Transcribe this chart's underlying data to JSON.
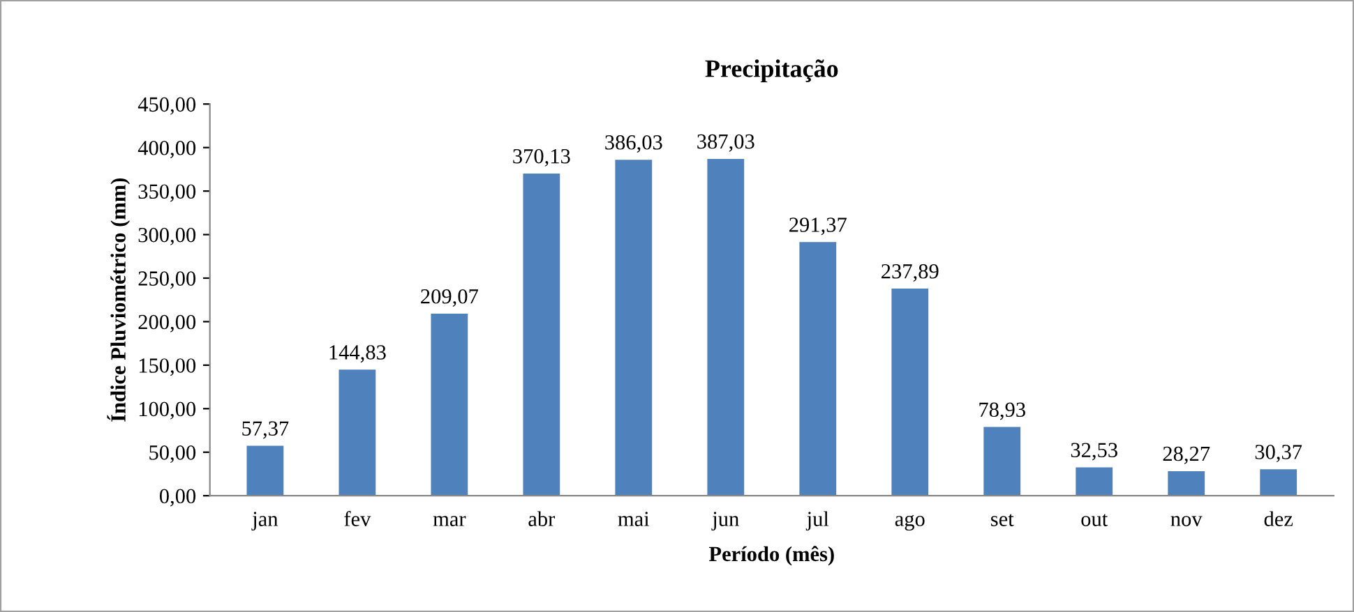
{
  "chart_data": {
    "type": "bar",
    "title": "Precipitação",
    "xlabel": "Período (mês)",
    "ylabel": "Índice Pluviométrico (mm)",
    "categories": [
      "jan",
      "fev",
      "mar",
      "abr",
      "mai",
      "jun",
      "jul",
      "ago",
      "set",
      "out",
      "nov",
      "dez"
    ],
    "values": [
      57.37,
      144.83,
      209.07,
      370.13,
      386.03,
      387.03,
      291.37,
      237.89,
      78.93,
      32.53,
      28.27,
      30.37
    ],
    "value_labels": [
      "57,37",
      "144,83",
      "209,07",
      "370,13",
      "386,03",
      "387,03",
      "291,37",
      "237,89",
      "78,93",
      "32,53",
      "28,27",
      "30,37"
    ],
    "color": "#4f81bd",
    "ylim": [
      0,
      450
    ],
    "yticks": [
      {
        "value": 0,
        "label": "0,00"
      },
      {
        "value": 50,
        "label": "50,00"
      },
      {
        "value": 100,
        "label": "100,00"
      },
      {
        "value": 150,
        "label": "150,00"
      },
      {
        "value": 200,
        "label": "200,00"
      },
      {
        "value": 250,
        "label": "250,00"
      },
      {
        "value": 300,
        "label": "300,00"
      },
      {
        "value": 350,
        "label": "350,00"
      },
      {
        "value": 400,
        "label": "400,00"
      },
      {
        "value": 450,
        "label": "450,00"
      }
    ],
    "grid": false,
    "legend": false
  }
}
